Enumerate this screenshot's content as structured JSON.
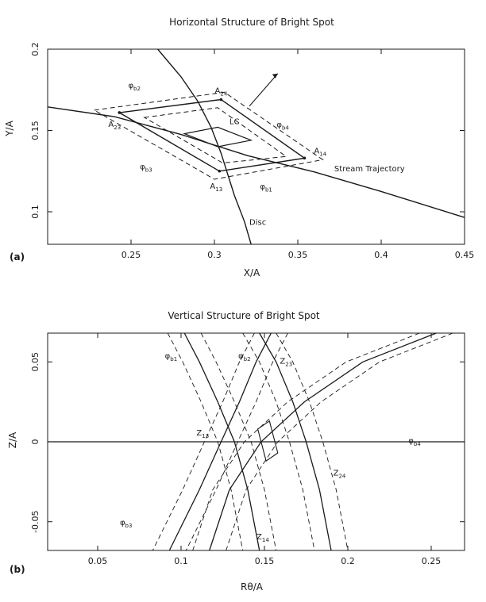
{
  "chart_data": [
    {
      "panel_label": "(a)",
      "type": "line",
      "title": "Horizontal Structure of Bright Spot",
      "xlabel": "X/A",
      "ylabel": "Y/A",
      "xlim": [
        0.2,
        0.45
      ],
      "ylim": [
        0.08,
        0.2
      ],
      "xticks": [
        "0.25",
        "0.3",
        "0.35",
        "0.4",
        "0.45"
      ],
      "xtick_values": [
        0.25,
        0.3,
        0.35,
        0.4,
        0.45
      ],
      "yticks": [
        "0.1",
        "0.15",
        "0.2"
      ],
      "ytick_values": [
        0.1,
        0.15,
        0.2
      ],
      "curves": {
        "stream_trajectory": {
          "label": "Stream Trajectory",
          "x": [
            0.2,
            0.24,
            0.28,
            0.32,
            0.36,
            0.4,
            0.45
          ],
          "y": [
            0.1645,
            0.1585,
            0.1475,
            0.1345,
            0.1245,
            0.1125,
            0.0965
          ]
        },
        "disc": {
          "label": "Disc",
          "x": [
            0.266,
            0.28,
            0.29,
            0.298,
            0.304,
            0.312,
            0.318,
            0.322
          ],
          "y": [
            0.2,
            0.183,
            0.168,
            0.152,
            0.136,
            0.11,
            0.094,
            0.08
          ]
        }
      },
      "vertices": {
        "A24": {
          "label": "A",
          "sub": "24",
          "x": 0.304,
          "y": 0.169
        },
        "A14": {
          "label": "A",
          "sub": "14",
          "x": 0.354,
          "y": 0.133
        },
        "A13": {
          "label": "A",
          "sub": "13",
          "x": 0.303,
          "y": 0.125
        },
        "A23": {
          "label": "A",
          "sub": "23",
          "x": 0.243,
          "y": 0.161
        }
      },
      "lc": {
        "label": "LC",
        "x": [
          0.282,
          0.302,
          0.322,
          0.302
        ],
        "y": [
          0.148,
          0.152,
          0.144,
          0.14
        ]
      },
      "dashed_outer": {
        "x": [
          0.228,
          0.306,
          0.365,
          0.3
        ],
        "y": [
          0.1625,
          0.1735,
          0.132,
          0.12
        ]
      },
      "dashed_inner": {
        "x": [
          0.258,
          0.302,
          0.343,
          0.305
        ],
        "y": [
          0.158,
          0.164,
          0.134,
          0.13
        ]
      },
      "phi_labels": [
        {
          "label": "φ",
          "sub": "b2",
          "x": 0.252,
          "y": 0.176
        },
        {
          "label": "φ",
          "sub": "b4",
          "x": 0.341,
          "y": 0.152
        },
        {
          "label": "φ",
          "sub": "b3",
          "x": 0.259,
          "y": 0.126
        },
        {
          "label": "φ",
          "sub": "b1",
          "x": 0.331,
          "y": 0.114
        }
      ]
    },
    {
      "panel_label": "(b)",
      "type": "line",
      "title": "Vertical Structure of Bright Spot",
      "xlabel": "Rθ/A",
      "ylabel": "Z/A",
      "xlim": [
        0.02,
        0.27
      ],
      "ylim": [
        -0.068,
        0.068
      ],
      "xticks": [
        "0.05",
        "0.1",
        "0.15",
        "0.2",
        "0.25"
      ],
      "xtick_values": [
        0.05,
        0.1,
        0.15,
        0.2,
        0.25
      ],
      "yticks": [
        "-0.05",
        "0",
        "0.05"
      ],
      "ytick_values": [
        -0.05,
        0,
        0.05
      ],
      "curves": {
        "phi_b1": {
          "x": [
            0.102,
            0.111,
            0.122,
            0.132,
            0.14,
            0.147
          ],
          "y": [
            0.068,
            0.05,
            0.025,
            0.0,
            -0.03,
            -0.068
          ]
        },
        "phi_b2": {
          "x": [
            0.147,
            0.157,
            0.167,
            0.175,
            0.183,
            0.19
          ],
          "y": [
            0.068,
            0.05,
            0.025,
            0.0,
            -0.03,
            -0.068
          ]
        },
        "phi_b3": {
          "x": [
            0.154,
            0.145,
            0.135,
            0.124,
            0.111,
            0.093
          ],
          "y": [
            0.068,
            0.05,
            0.025,
            0.0,
            -0.03,
            -0.068
          ]
        },
        "phi_b4": {
          "x": [
            0.253,
            0.209,
            0.174,
            0.148,
            0.129,
            0.117
          ],
          "y": [
            0.068,
            0.05,
            0.025,
            0.0,
            -0.03,
            -0.068
          ]
        },
        "z_axis": {
          "x": [
            0.02,
            0.27
          ],
          "y": [
            0.0,
            0.0
          ]
        }
      },
      "dashed_offset": 0.01,
      "lc": {
        "x": [
          0.146,
          0.153,
          0.158,
          0.151
        ],
        "y": [
          0.008,
          0.013,
          -0.007,
          -0.012
        ]
      },
      "labels": [
        {
          "label": "φ",
          "sub": "b1",
          "x": 0.094,
          "y": 0.052
        },
        {
          "label": "φ",
          "sub": "b2",
          "x": 0.138,
          "y": 0.052
        },
        {
          "label": "Z",
          "sub": "23",
          "x": 0.163,
          "y": 0.049
        },
        {
          "label": "Z",
          "sub": "13",
          "x": 0.113,
          "y": 0.004
        },
        {
          "label": "φ",
          "sub": "b4",
          "x": 0.24,
          "y": -0.001
        },
        {
          "label": "Z",
          "sub": "24",
          "x": 0.195,
          "y": -0.021
        },
        {
          "label": "φ",
          "sub": "b3",
          "x": 0.067,
          "y": -0.052
        },
        {
          "label": "Z",
          "sub": "14",
          "x": 0.149,
          "y": -0.061
        }
      ]
    }
  ]
}
